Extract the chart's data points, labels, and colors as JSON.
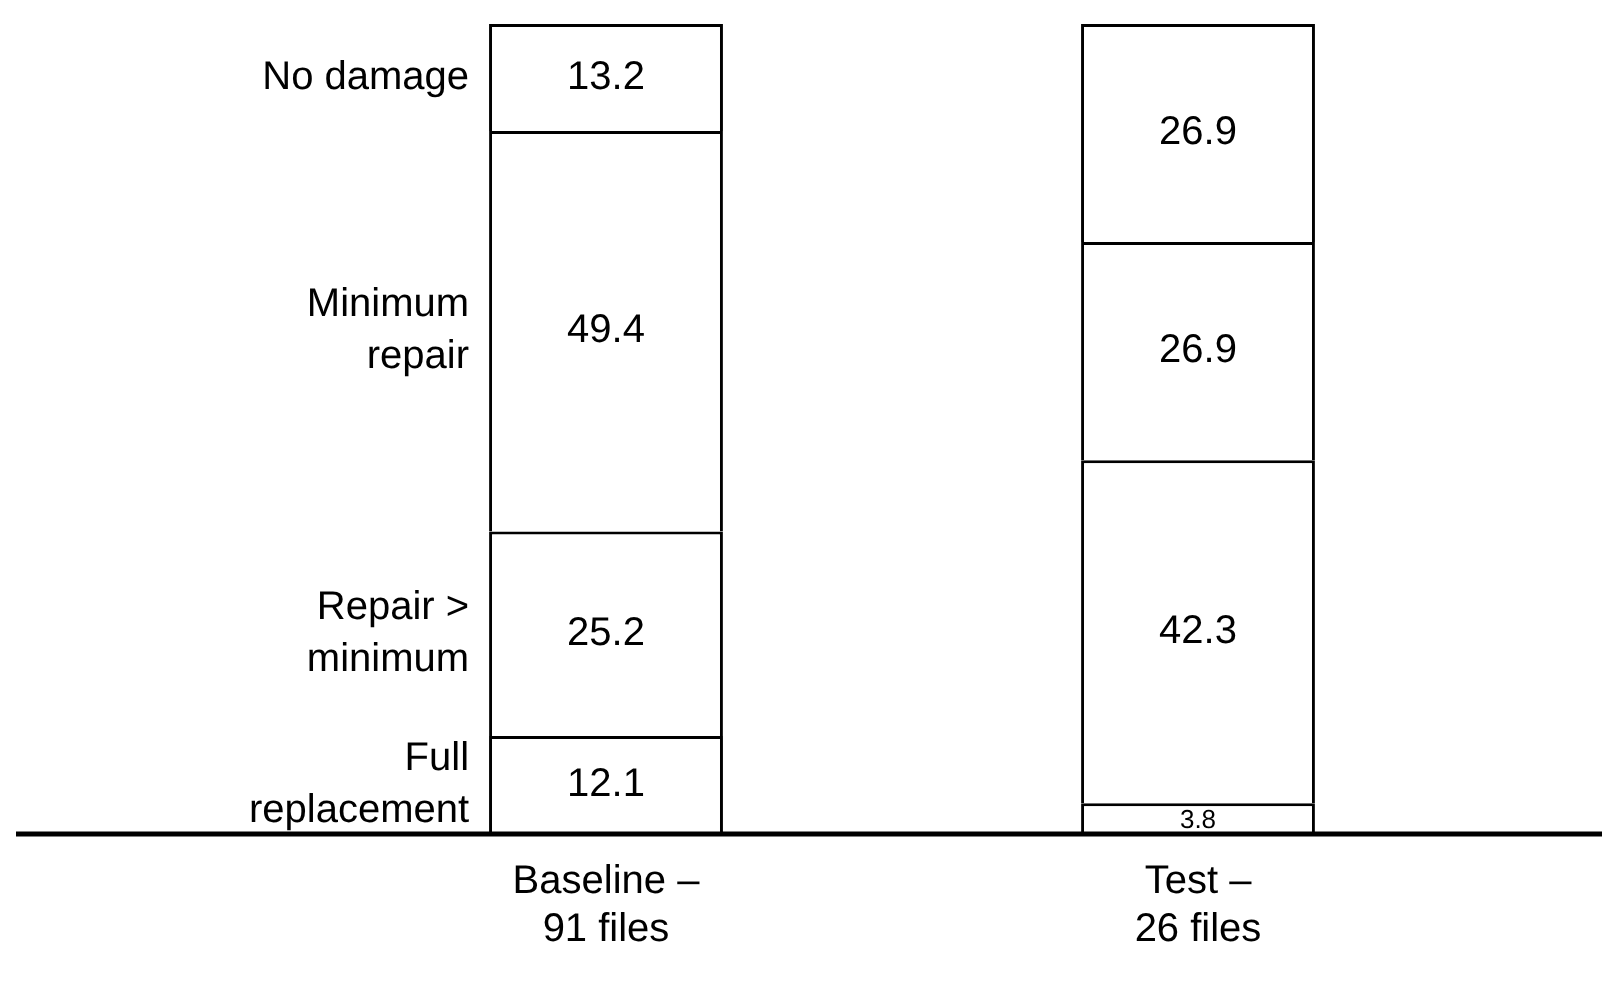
{
  "chart_data": {
    "type": "bar",
    "stacked": true,
    "tick_labels": "x",
    "data_labels": true,
    "legend": false,
    "grid": false,
    "categories": [
      "Baseline – 91 files",
      "Test – 26 files"
    ],
    "series": [
      {
        "name": "Full replacement",
        "color": "#ffffff",
        "values": [
          12.1,
          3.8
        ]
      },
      {
        "name": "Repair > minimum",
        "color": "#ffffff",
        "values": [
          25.2,
          42.3
        ]
      },
      {
        "name": "Minimum repair",
        "color": "#ffffff",
        "values": [
          49.4,
          26.9
        ]
      },
      {
        "name": "No damage",
        "color": "#ffffff",
        "values": [
          13.2,
          26.9
        ]
      }
    ]
  }
}
